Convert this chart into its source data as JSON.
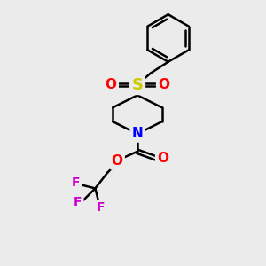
{
  "background_color": "#ebebeb",
  "bond_color": "#000000",
  "figsize": [
    3.0,
    3.0
  ],
  "dpi": 100,
  "atom_colors": {
    "S": "#cccc00",
    "O": "#ff0000",
    "N": "#0000ff",
    "F": "#cc00cc",
    "C": "#000000"
  },
  "atom_fontsizes": {
    "S": 13,
    "O": 11,
    "N": 11,
    "F": 10,
    "C": 9
  },
  "bond_lw": 1.8
}
